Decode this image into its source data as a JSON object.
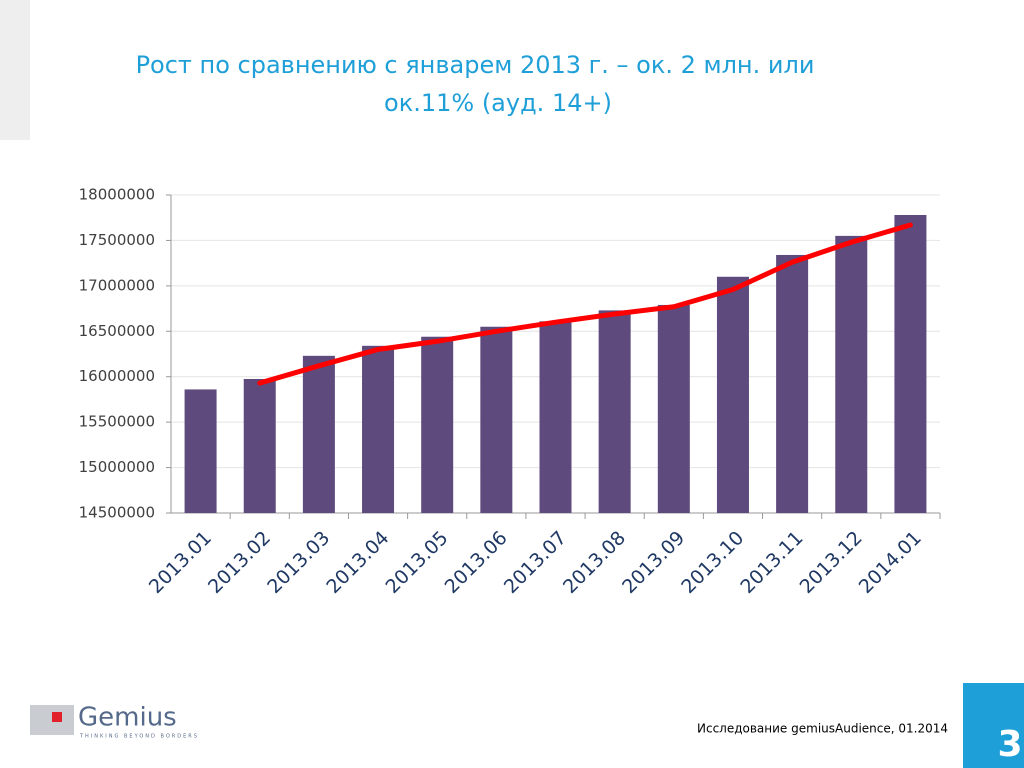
{
  "chart_data": {
    "type": "bar",
    "title": [
      "Рост по сравнению с январем 2013 г. – ок. 2 млн. или",
      "ок.11% (ауд. 14+)"
    ],
    "categories": [
      "2013.01",
      "2013.02",
      "2013.03",
      "2013.04",
      "2013.05",
      "2013.06",
      "2013.07",
      "2013.08",
      "2013.09",
      "2013.10",
      "2013.11",
      "2013.12",
      "2014.01"
    ],
    "series": [
      {
        "type": "bar",
        "color": "#5e4a7c",
        "values": [
          15860000,
          15975000,
          16230000,
          16340000,
          16440000,
          16550000,
          16610000,
          16730000,
          16790000,
          17100000,
          17340000,
          17550000,
          17780000
        ]
      },
      {
        "type": "line",
        "color": "#ff0000",
        "values": [
          null,
          15930000,
          16120000,
          16300000,
          16390000,
          16500000,
          16600000,
          16690000,
          16770000,
          16960000,
          17260000,
          17480000,
          17670000
        ]
      }
    ],
    "ylim": [
      14500000,
      18000000
    ],
    "yticks": [
      14500000,
      15000000,
      15500000,
      16000000,
      16500000,
      17000000,
      17500000,
      18000000
    ],
    "grid": true
  },
  "footer": {
    "logo": "Gemius",
    "tagline": "THINKING BEYOND BORDERS",
    "source": "Исследование gemiusAudience, 01.2014",
    "page_number": "3"
  }
}
